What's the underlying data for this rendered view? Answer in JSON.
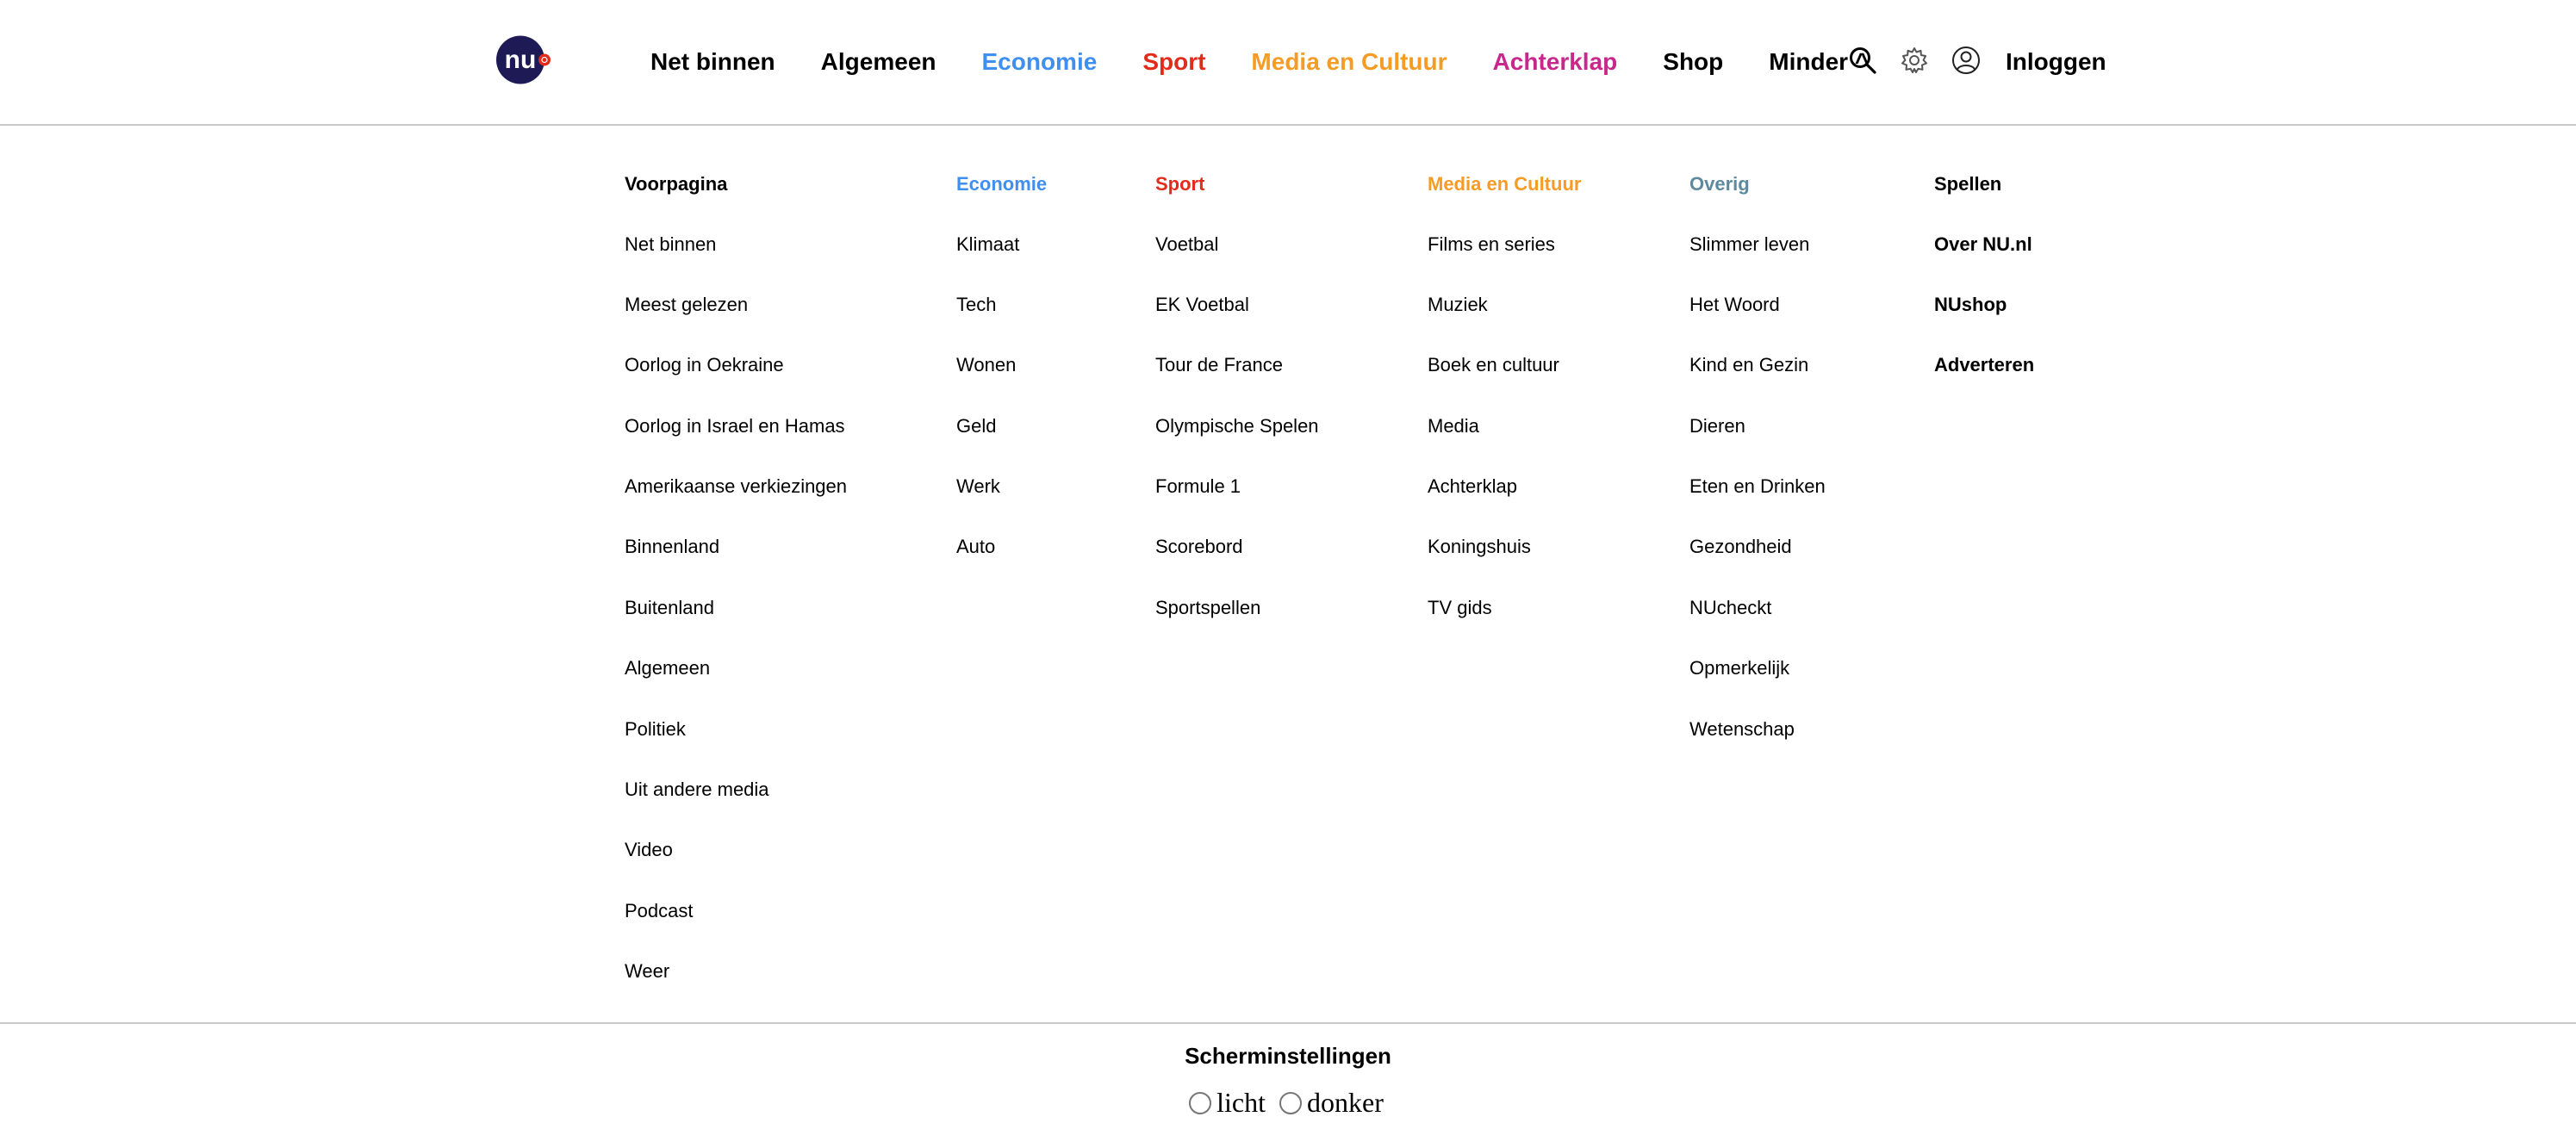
{
  "colors": {
    "economie": "#3f8fee",
    "sport": "#e12b1b",
    "media": "#f59b26",
    "achterklap": "#c8288c",
    "overig": "#5d8a9e",
    "logo_bg": "#1d1a55",
    "logo_dot": "#e12b1b"
  },
  "header": {
    "logo_text": "nu",
    "nav": [
      {
        "label": "Net binnen",
        "color": "#000000"
      },
      {
        "label": "Algemeen",
        "color": "#000000"
      },
      {
        "label": "Economie",
        "color": "#3f8fee"
      },
      {
        "label": "Sport",
        "color": "#e12b1b"
      },
      {
        "label": "Media en Cultuur",
        "color": "#f59b26"
      },
      {
        "label": "Achterklap",
        "color": "#c8288c"
      },
      {
        "label": "Shop",
        "color": "#000000"
      },
      {
        "label": "Minder ^",
        "color": "#000000"
      }
    ],
    "icons": [
      "search-icon",
      "gear-icon",
      "user-icon"
    ],
    "login_label": "Inloggen"
  },
  "menu": {
    "columns": [
      {
        "heading": "Voorpagina",
        "heading_color": "#000000",
        "items": [
          "Net binnen",
          "Meest gelezen",
          "Oorlog in Oekraine",
          "Oorlog in Israel en Hamas",
          "Amerikaanse verkiezingen",
          "Binnenland",
          "Buitenland",
          "Algemeen",
          "Politiek",
          "Uit andere media",
          "Video",
          "Podcast",
          "Weer"
        ]
      },
      {
        "heading": "Economie",
        "heading_color": "#3f8fee",
        "items": [
          "Klimaat",
          "Tech",
          "Wonen",
          "Geld",
          "Werk",
          "Auto"
        ]
      },
      {
        "heading": "Sport",
        "heading_color": "#e12b1b",
        "items": [
          "Voetbal",
          "EK Voetbal",
          "Tour de France",
          "Olympische Spelen",
          "Formule 1",
          "Scorebord",
          "Sportspellen"
        ]
      },
      {
        "heading": "Media en Cultuur",
        "heading_color": "#f59b26",
        "items": [
          "Films en series",
          "Muziek",
          "Boek en cultuur",
          "Media",
          "Achterklap",
          "Koningshuis",
          "TV gids"
        ]
      },
      {
        "heading": "Overig",
        "heading_color": "#5d8a9e",
        "items": [
          "Slimmer leven",
          "Het Woord",
          "Kind en Gezin",
          "Dieren",
          "Eten en Drinken",
          "Gezondheid",
          "NUcheckt",
          "Opmerkelijk",
          "Wetenschap"
        ]
      },
      {
        "heading": "Spellen",
        "heading_color": "#000000",
        "bold_items": true,
        "items": [
          "Over NU.nl",
          "NUshop",
          "Adverteren"
        ]
      }
    ]
  },
  "settings": {
    "title": "Scherminstellingen",
    "options": [
      "licht",
      "donker"
    ]
  }
}
